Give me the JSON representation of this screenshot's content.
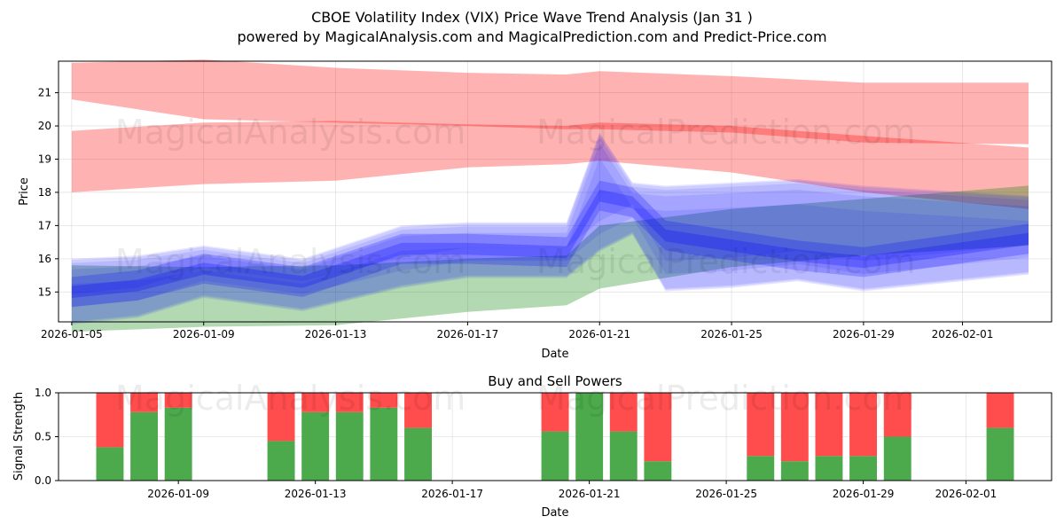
{
  "header": {
    "title": "CBOE Volatility Index (VIX) Price Wave Trend Analysis (Jan 31 )",
    "subtitle": "powered by MagicalAnalysis.com and MagicalPrediction.com and Predict-Price.com"
  },
  "watermarks": [
    "MagicalAnalysis.com",
    "MagicalPrediction.com"
  ],
  "colors": {
    "red_band": "#ff0000",
    "green_band": "#008000",
    "blue_band": "#0000ff",
    "buy": "#4caa4c",
    "sell": "#ff4c4c"
  },
  "chart_data": [
    {
      "type": "area",
      "title": "",
      "xlabel": "Date",
      "ylabel": "Price",
      "xlim": [
        "2026-01-04.6",
        "2026-02-03.7"
      ],
      "ylim": [
        14.1,
        21.95
      ],
      "xticks": [
        "2026-01-05",
        "2026-01-09",
        "2026-01-13",
        "2026-01-17",
        "2026-01-21",
        "2026-01-25",
        "2026-01-29",
        "2026-02-01"
      ],
      "yticks": [
        15,
        16,
        17,
        18,
        19,
        20,
        21
      ],
      "grid": true,
      "bands": [
        {
          "name": "upper-resistance-band",
          "color": "red",
          "x": [
            "2026-01-05",
            "2026-01-09",
            "2026-01-13",
            "2026-01-17",
            "2026-01-20",
            "2026-01-21",
            "2026-01-25",
            "2026-01-29",
            "2026-02-03"
          ],
          "upper": [
            21.9,
            22.0,
            21.75,
            21.6,
            21.55,
            21.65,
            21.5,
            21.3,
            21.3
          ],
          "lower": [
            20.8,
            20.2,
            20.1,
            20.0,
            19.9,
            19.9,
            19.8,
            19.5,
            19.45
          ]
        },
        {
          "name": "lower-resistance-band",
          "color": "red",
          "x": [
            "2026-01-05",
            "2026-01-09",
            "2026-01-13",
            "2026-01-17",
            "2026-01-20",
            "2026-01-21",
            "2026-01-25",
            "2026-01-29",
            "2026-02-03"
          ],
          "upper": [
            19.85,
            20.1,
            20.15,
            20.05,
            20.0,
            20.1,
            20.0,
            19.7,
            19.35
          ],
          "lower": [
            18.0,
            18.25,
            18.35,
            18.75,
            18.85,
            18.95,
            18.6,
            18.0,
            17.5
          ]
        },
        {
          "name": "support-band",
          "color": "green",
          "x": [
            "2026-01-05",
            "2026-01-09",
            "2026-01-13",
            "2026-01-17",
            "2026-01-20",
            "2026-01-21",
            "2026-01-25",
            "2026-01-29",
            "2026-02-03"
          ],
          "upper": [
            15.8,
            15.75,
            15.8,
            16.0,
            16.1,
            17.0,
            17.5,
            17.8,
            18.2
          ],
          "lower": [
            13.8,
            13.95,
            14.0,
            14.4,
            14.6,
            15.1,
            15.75,
            16.1,
            16.4
          ]
        },
        {
          "name": "wave-band",
          "color": "blue",
          "x": [
            "2026-01-05",
            "2026-01-07",
            "2026-01-09",
            "2026-01-12",
            "2026-01-15",
            "2026-01-17",
            "2026-01-20",
            "2026-01-21",
            "2026-01-22",
            "2026-01-23",
            "2026-01-25",
            "2026-01-27",
            "2026-01-29",
            "2026-02-03"
          ],
          "upper": [
            16.0,
            16.1,
            16.4,
            16.0,
            17.0,
            17.1,
            17.1,
            19.8,
            18.3,
            18.2,
            18.3,
            18.4,
            18.2,
            17.9
          ],
          "lower": [
            14.1,
            14.3,
            14.9,
            14.5,
            15.2,
            15.5,
            15.5,
            16.3,
            16.8,
            15.1,
            15.2,
            15.4,
            15.1,
            15.6
          ]
        }
      ],
      "wave_center": {
        "x": [
          "2026-01-05",
          "2026-01-07",
          "2026-01-09",
          "2026-01-12",
          "2026-01-15",
          "2026-01-17",
          "2026-01-20",
          "2026-01-21",
          "2026-01-22",
          "2026-01-23",
          "2026-01-25",
          "2026-01-27",
          "2026-01-29",
          "2026-02-03"
        ],
        "y": [
          15.0,
          15.2,
          15.7,
          15.3,
          16.3,
          16.3,
          16.2,
          17.9,
          17.7,
          16.7,
          16.4,
          16.1,
          15.9,
          16.6
        ]
      }
    },
    {
      "type": "bar",
      "title": "Buy and Sell Powers",
      "xlabel": "Date",
      "ylabel": "Signal Strength",
      "xlim": [
        "2026-01-05.5",
        "2026-02-03.5"
      ],
      "ylim": [
        0,
        1
      ],
      "xticks": [
        "2026-01-09",
        "2026-01-13",
        "2026-01-17",
        "2026-01-21",
        "2026-01-25",
        "2026-01-29",
        "2026-02-01"
      ],
      "yticks": [
        "0.0",
        "0.5",
        "1.0"
      ],
      "grid": true,
      "series": [
        {
          "name": "Buy",
          "dates": [
            "2026-01-07",
            "2026-01-08",
            "2026-01-09",
            "2026-01-12",
            "2026-01-13",
            "2026-01-14",
            "2026-01-15",
            "2026-01-16",
            "2026-01-20",
            "2026-01-21",
            "2026-01-22",
            "2026-01-23",
            "2026-01-26",
            "2026-01-27",
            "2026-01-28",
            "2026-01-29",
            "2026-01-30",
            "2026-02-02"
          ],
          "values": [
            0.38,
            0.78,
            0.83,
            0.45,
            0.78,
            0.78,
            0.83,
            0.6,
            0.56,
            1.0,
            0.56,
            0.22,
            0.28,
            0.22,
            0.28,
            0.28,
            0.5,
            0.6
          ]
        },
        {
          "name": "Sell",
          "dates": [
            "2026-01-07",
            "2026-01-08",
            "2026-01-09",
            "2026-01-12",
            "2026-01-13",
            "2026-01-14",
            "2026-01-15",
            "2026-01-16",
            "2026-01-20",
            "2026-01-21",
            "2026-01-22",
            "2026-01-23",
            "2026-01-26",
            "2026-01-27",
            "2026-01-28",
            "2026-01-29",
            "2026-01-30",
            "2026-02-02"
          ],
          "values": [
            0.62,
            0.22,
            0.17,
            0.55,
            0.22,
            0.22,
            0.17,
            0.4,
            0.44,
            0.0,
            0.44,
            0.78,
            0.72,
            0.78,
            0.72,
            0.72,
            0.5,
            0.4
          ]
        }
      ]
    }
  ]
}
